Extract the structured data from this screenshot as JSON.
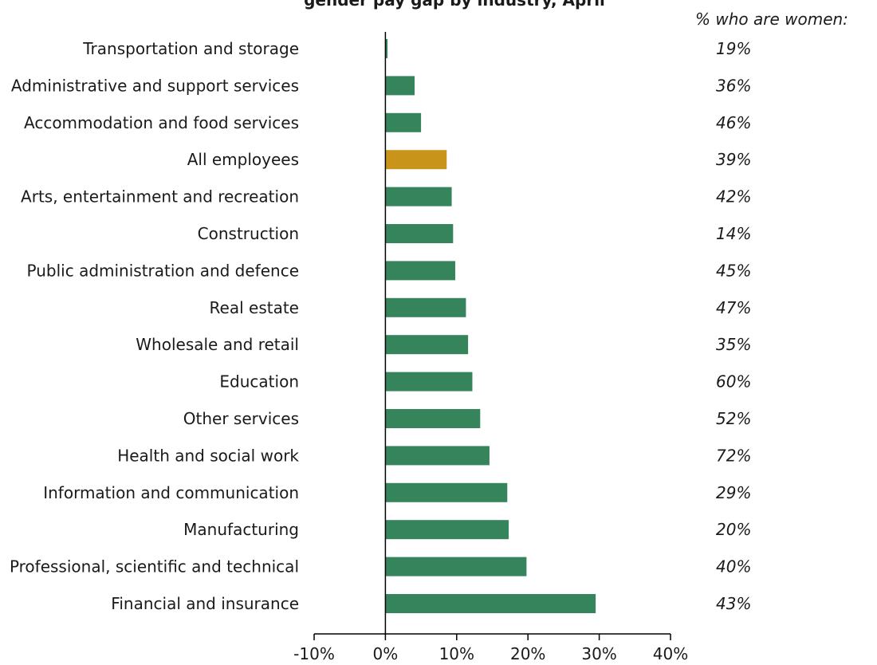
{
  "colors": {
    "bar": "#36845c",
    "highlight": "#c9941a",
    "axis": "#000000",
    "text": "#1a1a1a"
  },
  "chart_data": {
    "type": "bar",
    "orientation": "horizontal",
    "title": "gender pay gap by industry, April",
    "xlabel": "",
    "ylabel": "",
    "xlim": [
      -0.1,
      0.4
    ],
    "xticks": [
      "-10%",
      "0%",
      "10%",
      "20%",
      "30%",
      "40%"
    ],
    "xtick_values": [
      -0.1,
      0.0,
      0.1,
      0.2,
      0.3,
      0.4
    ],
    "grid": false,
    "legend": "none",
    "pct_women_header": "% who are women:",
    "highlight_category": "All employees",
    "categories": [
      "Transportation and storage",
      "Administrative and support services",
      "Accommodation and food services",
      "All employees",
      "Arts, entertainment and recreation",
      "Construction",
      "Public administration and defence",
      "Real estate",
      "Wholesale and retail",
      "Education",
      "Other services",
      "Health and social work",
      "Information and communication",
      "Manufacturing",
      "Professional, scientific and technical",
      "Financial and insurance"
    ],
    "values": [
      0.003,
      0.041,
      0.05,
      0.086,
      0.093,
      0.095,
      0.098,
      0.113,
      0.116,
      0.122,
      0.133,
      0.146,
      0.171,
      0.173,
      0.198,
      0.295
    ],
    "pct_women": [
      "19%",
      "36%",
      "46%",
      "39%",
      "42%",
      "14%",
      "45%",
      "47%",
      "35%",
      "60%",
      "52%",
      "72%",
      "29%",
      "20%",
      "40%",
      "43%"
    ]
  }
}
